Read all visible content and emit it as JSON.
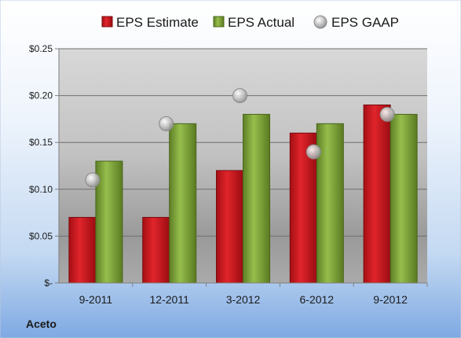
{
  "chart_data": {
    "type": "bar",
    "categories": [
      "9-2011",
      "12-2011",
      "3-2012",
      "6-2012",
      "9-2012"
    ],
    "series": [
      {
        "name": "EPS Estimate",
        "kind": "bar",
        "color": "#c0181e",
        "values": [
          0.07,
          0.07,
          0.12,
          0.16,
          0.19
        ]
      },
      {
        "name": "EPS Actual",
        "kind": "bar",
        "color": "#7da23a",
        "values": [
          0.13,
          0.17,
          0.18,
          0.17,
          0.18
        ]
      },
      {
        "name": "EPS GAAP",
        "kind": "marker",
        "color": "#c8c8c8",
        "values": [
          0.11,
          0.17,
          0.2,
          0.14,
          0.18
        ]
      }
    ],
    "ylim": [
      0,
      0.25
    ],
    "yticks": [
      {
        "value": 0,
        "label": "$-"
      },
      {
        "value": 0.05,
        "label": "$0.05"
      },
      {
        "value": 0.1,
        "label": "$0.10"
      },
      {
        "value": 0.15,
        "label": "$0.15"
      },
      {
        "value": 0.2,
        "label": "$0.20"
      },
      {
        "value": 0.25,
        "label": "$0.25"
      }
    ],
    "legend_position": "top",
    "grid": true,
    "company": "Aceto"
  }
}
